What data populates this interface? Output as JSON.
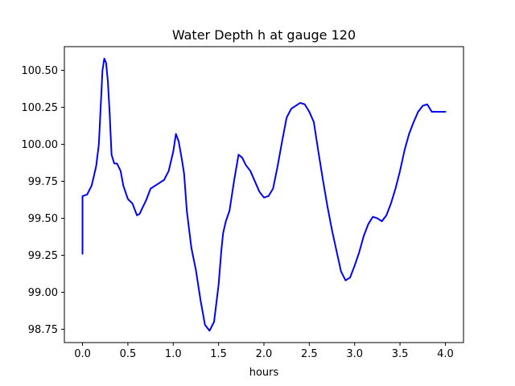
{
  "chart_data": {
    "type": "line",
    "title": "Water Depth h at gauge 120",
    "xlabel": "hours",
    "ylabel": "",
    "xlim": [
      -0.2,
      4.2
    ],
    "ylim": [
      98.66,
      100.66
    ],
    "xticks": [
      0.0,
      0.5,
      1.0,
      1.5,
      2.0,
      2.5,
      3.0,
      3.5,
      4.0
    ],
    "xtick_labels": [
      "0.0",
      "0.5",
      "1.0",
      "1.5",
      "2.0",
      "2.5",
      "3.0",
      "3.5",
      "4.0"
    ],
    "yticks": [
      98.75,
      99.0,
      99.25,
      99.5,
      99.75,
      100.0,
      100.25,
      100.5
    ],
    "ytick_labels": [
      "98.75",
      "99.00",
      "99.25",
      "99.50",
      "99.75",
      "100.00",
      "100.25",
      "100.50"
    ],
    "grid": false,
    "series": [
      {
        "color": "#0000ff",
        "x": [
          0.0,
          0.0,
          0.05,
          0.1,
          0.15,
          0.18,
          0.2,
          0.22,
          0.24,
          0.26,
          0.28,
          0.3,
          0.32,
          0.35,
          0.38,
          0.42,
          0.45,
          0.5,
          0.55,
          0.6,
          0.63,
          0.66,
          0.7,
          0.75,
          0.8,
          0.85,
          0.9,
          0.95,
          1.0,
          1.03,
          1.06,
          1.08,
          1.1,
          1.12,
          1.15,
          1.2,
          1.25,
          1.3,
          1.35,
          1.4,
          1.45,
          1.5,
          1.53,
          1.55,
          1.58,
          1.62,
          1.67,
          1.72,
          1.76,
          1.8,
          1.85,
          1.9,
          1.95,
          2.0,
          2.05,
          2.1,
          2.15,
          2.2,
          2.25,
          2.3,
          2.35,
          2.4,
          2.45,
          2.5,
          2.55,
          2.6,
          2.65,
          2.7,
          2.75,
          2.8,
          2.85,
          2.9,
          2.95,
          3.0,
          3.05,
          3.1,
          3.15,
          3.2,
          3.25,
          3.3,
          3.35,
          3.4,
          3.45,
          3.5,
          3.55,
          3.6,
          3.65,
          3.7,
          3.75,
          3.8,
          3.85,
          3.9,
          3.95,
          4.0
        ],
        "y": [
          99.26,
          99.65,
          99.66,
          99.72,
          99.85,
          100.0,
          100.25,
          100.5,
          100.58,
          100.55,
          100.42,
          100.2,
          99.93,
          99.87,
          99.87,
          99.82,
          99.72,
          99.63,
          99.6,
          99.52,
          99.53,
          99.57,
          99.62,
          99.7,
          99.72,
          99.74,
          99.76,
          99.82,
          99.95,
          100.07,
          100.02,
          99.95,
          99.88,
          99.8,
          99.55,
          99.3,
          99.15,
          98.95,
          98.78,
          98.74,
          98.8,
          99.05,
          99.28,
          99.4,
          99.48,
          99.55,
          99.75,
          99.93,
          99.91,
          99.86,
          99.82,
          99.75,
          99.68,
          99.64,
          99.65,
          99.7,
          99.85,
          100.02,
          100.18,
          100.24,
          100.26,
          100.28,
          100.27,
          100.22,
          100.15,
          99.95,
          99.76,
          99.58,
          99.42,
          99.28,
          99.14,
          99.08,
          99.1,
          99.18,
          99.27,
          99.38,
          99.46,
          99.51,
          99.5,
          99.48,
          99.52,
          99.6,
          99.7,
          99.82,
          99.96,
          100.07,
          100.15,
          100.22,
          100.26,
          100.27,
          100.22,
          100.22,
          100.22,
          100.22
        ]
      }
    ]
  }
}
